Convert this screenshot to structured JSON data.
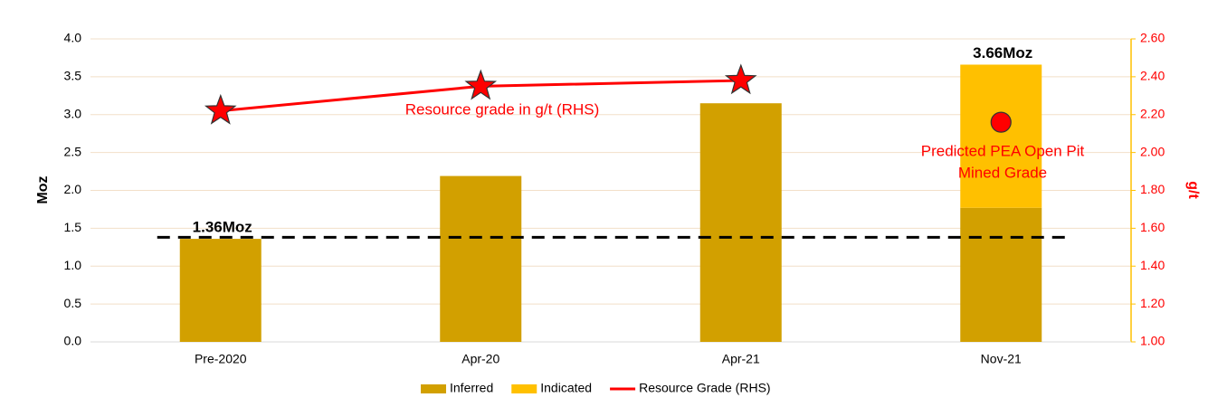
{
  "chart_data": {
    "type": "bar",
    "categories": [
      "Pre-2020",
      "Apr-20",
      "Apr-21",
      "Nov-21"
    ],
    "series": [
      {
        "name": "Inferred",
        "type": "bar",
        "color": "#d2a000",
        "values": [
          1.36,
          2.19,
          3.15,
          1.77
        ]
      },
      {
        "name": "Indicated",
        "type": "bar",
        "color": "#ffc000",
        "values": [
          0,
          0,
          0,
          1.89
        ]
      },
      {
        "name": "Resource Grade (RHS)",
        "type": "line",
        "axis": "y2",
        "color": "#ff0000",
        "marker": "star",
        "values": [
          2.22,
          2.35,
          2.38,
          null
        ]
      }
    ],
    "total_values": [
      1.36,
      null,
      null,
      3.66
    ],
    "total_labels": [
      "1.36Moz",
      null,
      null,
      "3.66Moz"
    ],
    "reference_line": {
      "value": 1.38,
      "style": "dashed",
      "color": "#000000"
    },
    "pea_point": {
      "category_index": 3,
      "value": 2.16,
      "color": "#ff0000",
      "axis": "y2"
    },
    "annotations": [
      {
        "lines": [
          "Resource grade in g/t (RHS)"
        ],
        "color": "#ff0000"
      },
      {
        "lines": [
          "Predicted PEA Open Pit",
          "Mined Grade"
        ],
        "color": "#ff0000"
      }
    ],
    "ylabel": "Moz",
    "y2label": "g/t",
    "ylim": [
      0,
      4
    ],
    "yticks": [
      {
        "value": 0,
        "label": "0.0"
      },
      0.5,
      {
        "value": 1,
        "label": "1.0"
      },
      1.5,
      {
        "value": 2,
        "label": "2.0"
      },
      2.5,
      {
        "value": 3,
        "label": "3.0"
      },
      3.5,
      {
        "value": 4,
        "label": "4.0"
      }
    ],
    "y2lim": [
      1,
      2.6
    ],
    "y2ticks": [
      {
        "value": 1,
        "label": "1.00"
      },
      {
        "value": 1.2,
        "label": "1.20"
      },
      {
        "value": 1.4,
        "label": "1.40"
      },
      {
        "value": 1.6,
        "label": "1.60"
      },
      {
        "value": 1.8,
        "label": "1.80"
      },
      {
        "value": 2,
        "label": "2.00"
      },
      {
        "value": 2.2,
        "label": "2.20"
      },
      {
        "value": 2.4,
        "label": "2.40"
      },
      {
        "value": 2.6,
        "label": "2.60"
      }
    ],
    "y2color": "#ff0000",
    "grid": true,
    "legend": "bottom"
  }
}
